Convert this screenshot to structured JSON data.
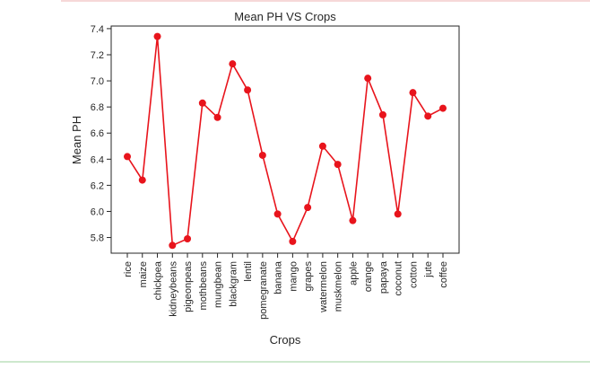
{
  "chart_data": {
    "type": "line",
    "title": "Mean PH VS Crops",
    "xlabel": "Crops",
    "ylabel": "Mean PH",
    "categories": [
      "rice",
      "maize",
      "chickpea",
      "kidneybeans",
      "pigeonpeas",
      "mothbeans",
      "mungbean",
      "blackgram",
      "lentil",
      "pomegranate",
      "banana",
      "mango",
      "grapes",
      "watermelon",
      "muskmelon",
      "apple",
      "orange",
      "papaya",
      "coconut",
      "cotton",
      "jute",
      "coffee"
    ],
    "values": [
      6.42,
      6.24,
      7.34,
      5.74,
      5.79,
      6.83,
      6.72,
      7.13,
      6.93,
      6.43,
      5.98,
      5.77,
      6.03,
      6.5,
      6.36,
      5.93,
      7.02,
      6.74,
      5.98,
      6.91,
      6.73,
      6.79
    ],
    "yticks": [
      5.8,
      6.0,
      6.2,
      6.4,
      6.6,
      6.8,
      7.0,
      7.2,
      7.4
    ],
    "ylim": [
      5.68,
      7.42
    ],
    "grid": false,
    "line_color": "#e8141c",
    "marker": "circle"
  }
}
